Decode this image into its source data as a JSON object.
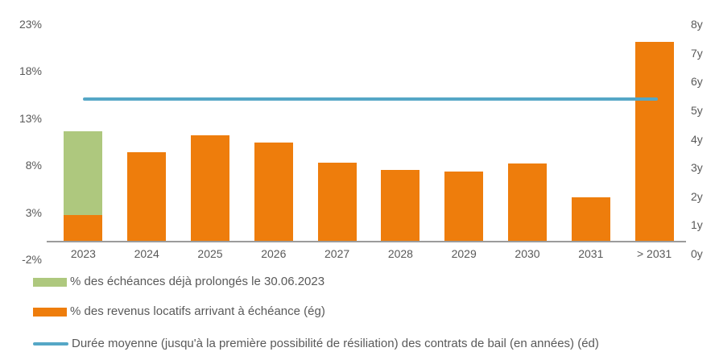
{
  "colors": {
    "orange": "#EE7D0C",
    "green": "#AEC87E",
    "blue": "#55A7C6",
    "axis_text": "#595959",
    "axis_line": "#9B9B9B"
  },
  "chart_data": {
    "type": "bar",
    "categories": [
      "2023",
      "2024",
      "2025",
      "2026",
      "2027",
      "2028",
      "2029",
      "2030",
      "2031",
      "> 2031"
    ],
    "series": [
      {
        "name": "% des échéances déjà prolongés le 30.06.2023",
        "color": "#AEC87E",
        "stack": "top",
        "values": [
          8.9,
          0,
          0,
          0,
          0,
          0,
          0,
          0,
          0,
          0
        ]
      },
      {
        "name": "% des revenus locatifs arrivant à échéance (ég)",
        "color": "#EE7D0C",
        "stack": "bottom",
        "values": [
          2.7,
          9.4,
          11.2,
          10.4,
          8.3,
          7.5,
          7.3,
          8.2,
          4.6,
          21.1
        ]
      }
    ],
    "line_series": {
      "name": "Durée moyenne (jusqu'à la première possibilité de résiliation) des contrats de bail (en années) (éd)",
      "color": "#55A7C6",
      "value_years": 5.4,
      "axis": "right"
    },
    "left_axis": {
      "unit": "%",
      "tick_values": [
        23,
        18,
        13,
        8,
        3,
        -2
      ],
      "min": -2,
      "max": 23
    },
    "right_axis": {
      "unit": "y",
      "tick_values": [
        8,
        7,
        6,
        5,
        4,
        3,
        2,
        1,
        0
      ],
      "min": 0,
      "max": 8
    },
    "title": "",
    "xlabel": "",
    "ylabel": "",
    "grid": false,
    "legend_position": "bottom"
  },
  "legend": {
    "items": [
      {
        "label": "% des échéances déjà prolongés le 30.06.2023",
        "swatch": "rect",
        "color": "#AEC87E"
      },
      {
        "label": "% des revenus locatifs arrivant à échéance (ég)",
        "swatch": "rect",
        "color": "#EE7D0C"
      },
      {
        "label": "Durée moyenne (jusqu'à la première possibilité de résiliation) des contrats de bail (en années) (éd)",
        "swatch": "line",
        "color": "#55A7C6"
      }
    ]
  }
}
